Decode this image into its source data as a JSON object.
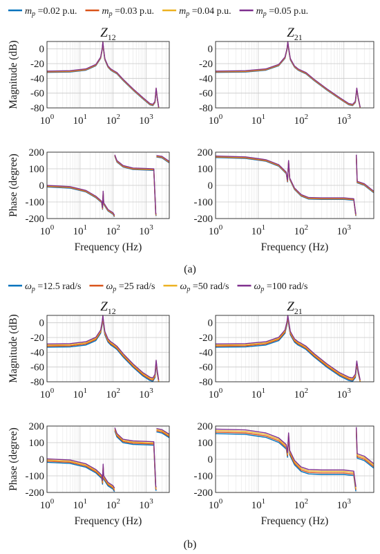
{
  "figure": {
    "caption_a": "(a)",
    "caption_b": "(b)"
  },
  "legends": {
    "a": [
      {
        "sym": "m",
        "sub": "p",
        "text": " =0.02 p.u.",
        "color": "#0072BD"
      },
      {
        "sym": "m",
        "sub": "p",
        "text": " =0.03 p.u.",
        "color": "#D95319"
      },
      {
        "sym": "m",
        "sub": "p",
        "text": " =0.04 p.u.",
        "color": "#EDB120"
      },
      {
        "sym": "m",
        "sub": "p",
        "text": " =0.05 p.u.",
        "color": "#7E2F8E"
      }
    ],
    "b": [
      {
        "sym": "ω",
        "sub": "p",
        "text": " =12.5 rad/s",
        "color": "#0072BD"
      },
      {
        "sym": "ω",
        "sub": "p",
        "text": " =25 rad/s",
        "color": "#D95319"
      },
      {
        "sym": "ω",
        "sub": "p",
        "text": " =50 rad/s",
        "color": "#EDB120"
      },
      {
        "sym": "ω",
        "sub": "p",
        "text": " =100 rad/s",
        "color": "#7E2F8E"
      }
    ]
  },
  "chart_data": [
    {
      "id": "a-mag-z12",
      "type": "line",
      "title_main": "Z",
      "title_sub": "12",
      "xlabel": "",
      "ylabel": "Magnitude (dB)",
      "xscale": "log",
      "xlim": [
        1,
        5000
      ],
      "ylim": [
        -80,
        10
      ],
      "yticks": [
        0,
        -20,
        -40,
        -60,
        -80
      ],
      "xticks": [
        {
          "base": "10",
          "exp": "0"
        },
        {
          "base": "10",
          "exp": "1"
        },
        {
          "base": "10",
          "exp": "2"
        },
        {
          "base": "10",
          "exp": "3"
        }
      ],
      "grid": true,
      "spread": 0.6,
      "series_points": [
        [
          1,
          -31
        ],
        [
          5,
          -30.5
        ],
        [
          15,
          -28
        ],
        [
          30,
          -22
        ],
        [
          42,
          -12
        ],
        [
          47,
          0
        ],
        [
          49,
          9
        ],
        [
          51,
          1
        ],
        [
          56,
          -14
        ],
        [
          70,
          -24
        ],
        [
          85,
          -28
        ],
        [
          100,
          -30
        ],
        [
          130,
          -33
        ],
        [
          200,
          -42
        ],
        [
          400,
          -55
        ],
        [
          800,
          -67
        ],
        [
          1300,
          -75
        ],
        [
          1600,
          -76
        ],
        [
          1850,
          -72
        ],
        [
          2000,
          -54
        ],
        [
          2150,
          -66
        ],
        [
          2400,
          -80
        ]
      ]
    },
    {
      "id": "a-mag-z21",
      "type": "line",
      "title_main": "Z",
      "title_sub": "21",
      "xlabel": "",
      "ylabel": "",
      "xscale": "log",
      "xlim": [
        1,
        5000
      ],
      "ylim": [
        -80,
        10
      ],
      "yticks": [
        0,
        -20,
        -40,
        -60,
        -80
      ],
      "xticks": [
        {
          "base": "10",
          "exp": "0"
        },
        {
          "base": "10",
          "exp": "1"
        },
        {
          "base": "10",
          "exp": "2"
        },
        {
          "base": "10",
          "exp": "3"
        }
      ],
      "grid": true,
      "spread": 0.6,
      "series_points": [
        [
          1,
          -31
        ],
        [
          5,
          -30.5
        ],
        [
          15,
          -28
        ],
        [
          30,
          -22
        ],
        [
          42,
          -12
        ],
        [
          47,
          0
        ],
        [
          49,
          9
        ],
        [
          51,
          1
        ],
        [
          56,
          -14
        ],
        [
          70,
          -24
        ],
        [
          85,
          -28
        ],
        [
          100,
          -30
        ],
        [
          130,
          -33
        ],
        [
          200,
          -42
        ],
        [
          400,
          -55
        ],
        [
          800,
          -67
        ],
        [
          1300,
          -75
        ],
        [
          1600,
          -76
        ],
        [
          1850,
          -72
        ],
        [
          2000,
          -54
        ],
        [
          2150,
          -66
        ],
        [
          2400,
          -80
        ]
      ]
    },
    {
      "id": "a-ph-z12",
      "type": "line",
      "title_main": "",
      "title_sub": "",
      "xlabel": "Frequency (Hz)",
      "ylabel": "Phase (degree)",
      "xscale": "log",
      "xlim": [
        1,
        5000
      ],
      "ylim": [
        -200,
        200
      ],
      "yticks": [
        200,
        100,
        0,
        -100,
        -200
      ],
      "xticks": [
        {
          "base": "10",
          "exp": "0"
        },
        {
          "base": "10",
          "exp": "1"
        },
        {
          "base": "10",
          "exp": "2"
        },
        {
          "base": "10",
          "exp": "3"
        }
      ],
      "grid": true,
      "spread": 3,
      "series_points": [
        [
          1,
          -5
        ],
        [
          5,
          -12
        ],
        [
          15,
          -35
        ],
        [
          30,
          -70
        ],
        [
          45,
          -100
        ],
        [
          48,
          -140
        ],
        [
          50,
          -40
        ],
        [
          52,
          -110
        ],
        [
          70,
          -150
        ],
        [
          100,
          -170
        ],
        [
          110,
          -185
        ],
        [
          112,
          180
        ],
        [
          130,
          145
        ],
        [
          200,
          115
        ],
        [
          400,
          100
        ],
        [
          1000,
          97
        ],
        [
          1700,
          95
        ],
        [
          1950,
          -170
        ],
        [
          2000,
          -180
        ],
        [
          2050,
          175
        ],
        [
          3000,
          170
        ],
        [
          5000,
          140
        ]
      ]
    },
    {
      "id": "a-ph-z21",
      "type": "line",
      "title_main": "",
      "title_sub": "",
      "xlabel": "Frequency (Hz)",
      "ylabel": "",
      "xscale": "log",
      "xlim": [
        1,
        5000
      ],
      "ylim": [
        -200,
        200
      ],
      "yticks": [
        200,
        100,
        0,
        -100,
        -200
      ],
      "xticks": [
        {
          "base": "10",
          "exp": "0"
        },
        {
          "base": "10",
          "exp": "1"
        },
        {
          "base": "10",
          "exp": "2"
        },
        {
          "base": "10",
          "exp": "3"
        }
      ],
      "grid": true,
      "spread": 3,
      "series_points": [
        [
          1,
          172
        ],
        [
          5,
          167
        ],
        [
          15,
          150
        ],
        [
          30,
          120
        ],
        [
          45,
          75
        ],
        [
          48,
          25
        ],
        [
          51,
          145
        ],
        [
          54,
          40
        ],
        [
          70,
          -20
        ],
        [
          100,
          -60
        ],
        [
          150,
          -78
        ],
        [
          300,
          -80
        ],
        [
          1000,
          -80
        ],
        [
          1700,
          -85
        ],
        [
          1900,
          -180
        ],
        [
          1950,
          180
        ],
        [
          2050,
          20
        ],
        [
          3000,
          5
        ],
        [
          5000,
          -40
        ]
      ]
    },
    {
      "id": "b-mag-z12",
      "type": "line",
      "title_main": "Z",
      "title_sub": "12",
      "xlabel": "",
      "ylabel": "Magnitude (dB)",
      "xscale": "log",
      "xlim": [
        1,
        5000
      ],
      "ylim": [
        -80,
        10
      ],
      "yticks": [
        0,
        -20,
        -40,
        -60,
        -80
      ],
      "xticks": [
        {
          "base": "10",
          "exp": "0"
        },
        {
          "base": "10",
          "exp": "1"
        },
        {
          "base": "10",
          "exp": "2"
        },
        {
          "base": "10",
          "exp": "3"
        }
      ],
      "grid": true,
      "spread": 1.5,
      "series_points": [
        [
          1,
          -31
        ],
        [
          5,
          -30.5
        ],
        [
          15,
          -28
        ],
        [
          30,
          -22
        ],
        [
          42,
          -12
        ],
        [
          47,
          0
        ],
        [
          49,
          8
        ],
        [
          51,
          1
        ],
        [
          56,
          -14
        ],
        [
          70,
          -24
        ],
        [
          85,
          -28
        ],
        [
          100,
          -30
        ],
        [
          130,
          -34
        ],
        [
          200,
          -44
        ],
        [
          400,
          -58
        ],
        [
          800,
          -70
        ],
        [
          1300,
          -76
        ],
        [
          1600,
          -77
        ],
        [
          1850,
          -72
        ],
        [
          2000,
          -53
        ],
        [
          2150,
          -66
        ],
        [
          2400,
          -80
        ]
      ]
    },
    {
      "id": "b-mag-z21",
      "type": "line",
      "title_main": "Z",
      "title_sub": "21",
      "xlabel": "",
      "ylabel": "",
      "xscale": "log",
      "xlim": [
        1,
        5000
      ],
      "ylim": [
        -80,
        10
      ],
      "yticks": [
        0,
        -20,
        -40,
        -60,
        -80
      ],
      "xticks": [
        {
          "base": "10",
          "exp": "0"
        },
        {
          "base": "10",
          "exp": "1"
        },
        {
          "base": "10",
          "exp": "2"
        },
        {
          "base": "10",
          "exp": "3"
        }
      ],
      "grid": true,
      "spread": 1.5,
      "series_points": [
        [
          1,
          -31
        ],
        [
          5,
          -30.5
        ],
        [
          15,
          -28
        ],
        [
          30,
          -22
        ],
        [
          42,
          -12
        ],
        [
          47,
          0
        ],
        [
          49,
          8
        ],
        [
          51,
          1
        ],
        [
          56,
          -14
        ],
        [
          70,
          -24
        ],
        [
          85,
          -28
        ],
        [
          100,
          -30
        ],
        [
          130,
          -34
        ],
        [
          200,
          -44
        ],
        [
          400,
          -58
        ],
        [
          800,
          -70
        ],
        [
          1300,
          -76
        ],
        [
          1600,
          -77
        ],
        [
          1850,
          -72
        ],
        [
          2000,
          -54
        ],
        [
          2150,
          -66
        ],
        [
          2400,
          -80
        ]
      ]
    },
    {
      "id": "b-ph-z12",
      "type": "line",
      "title_main": "",
      "title_sub": "",
      "xlabel": "Frequency (Hz)",
      "ylabel": "Phase (degree)",
      "xscale": "log",
      "xlim": [
        1,
        5000
      ],
      "ylim": [
        -200,
        200
      ],
      "yticks": [
        200,
        100,
        0,
        -100,
        -200
      ],
      "xticks": [
        {
          "base": "10",
          "exp": "0"
        },
        {
          "base": "10",
          "exp": "1"
        },
        {
          "base": "10",
          "exp": "2"
        },
        {
          "base": "10",
          "exp": "3"
        }
      ],
      "grid": true,
      "spread": 7,
      "series_points": [
        [
          1,
          -8
        ],
        [
          5,
          -15
        ],
        [
          15,
          -38
        ],
        [
          30,
          -72
        ],
        [
          45,
          -105
        ],
        [
          48,
          -140
        ],
        [
          50,
          -40
        ],
        [
          52,
          -110
        ],
        [
          70,
          -150
        ],
        [
          100,
          -170
        ],
        [
          110,
          -185
        ],
        [
          112,
          180
        ],
        [
          130,
          145
        ],
        [
          200,
          110
        ],
        [
          400,
          100
        ],
        [
          1000,
          97
        ],
        [
          1700,
          95
        ],
        [
          1950,
          -170
        ],
        [
          2000,
          -180
        ],
        [
          2050,
          175
        ],
        [
          3000,
          168
        ],
        [
          5000,
          140
        ]
      ]
    },
    {
      "id": "b-ph-z21",
      "type": "line",
      "title_main": "",
      "title_sub": "",
      "xlabel": "Frequency (Hz)",
      "ylabel": "",
      "xscale": "log",
      "xlim": [
        1,
        5000
      ],
      "ylim": [
        -200,
        200
      ],
      "yticks": [
        200,
        100,
        0,
        -100,
        -200
      ],
      "xticks": [
        {
          "base": "10",
          "exp": "0"
        },
        {
          "base": "10",
          "exp": "1"
        },
        {
          "base": "10",
          "exp": "2"
        },
        {
          "base": "10",
          "exp": "3"
        }
      ],
      "grid": true,
      "spread": 9,
      "series_points": [
        [
          1,
          168
        ],
        [
          5,
          163
        ],
        [
          15,
          145
        ],
        [
          30,
          115
        ],
        [
          45,
          75
        ],
        [
          48,
          25
        ],
        [
          51,
          145
        ],
        [
          54,
          40
        ],
        [
          70,
          -20
        ],
        [
          100,
          -60
        ],
        [
          150,
          -75
        ],
        [
          300,
          -78
        ],
        [
          1000,
          -78
        ],
        [
          1700,
          -85
        ],
        [
          1900,
          -180
        ],
        [
          1950,
          180
        ],
        [
          2050,
          20
        ],
        [
          3000,
          5
        ],
        [
          5000,
          -40
        ]
      ]
    }
  ]
}
